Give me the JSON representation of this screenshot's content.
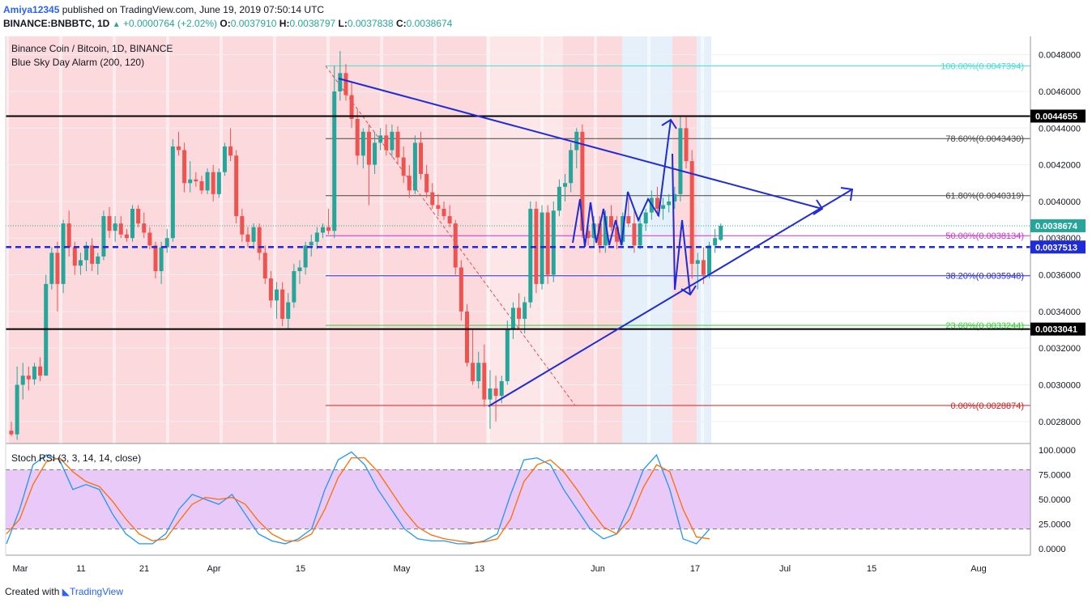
{
  "header": {
    "user": "Amiya12345",
    "published": "published on TradingView.com, June 19, 2019 07:50:14 UTC",
    "symbol": "BINANCE:BNBBTC, 1D",
    "change": "+0.0000764 (+2.02%)",
    "o_label": "O:",
    "o": "0.0037910",
    "h_label": "H:",
    "h": "0.0038797",
    "l_label": "L:",
    "l": "0.0037838",
    "c_label": "C:",
    "c": "0.0038674"
  },
  "legend": {
    "title": "Binance Coin / Bitcoin, 1D, BINANCE",
    "indicator": "Blue Sky Day Alarm (200, 120)",
    "oscillator": "Stoch RSI (3, 3, 14, 14, close)"
  },
  "footer": {
    "created": "Created with",
    "brand": "TradingView"
  },
  "colors": {
    "up": "#26a69a",
    "down": "#ef5350",
    "drawing": "#1f2bd6",
    "bg_red": "#fcd9dc",
    "bg_blue": "#e6f0fb",
    "stoch_band": "#e9c9f7"
  },
  "chart_data": {
    "type": "candlestick",
    "title": "Binance Coin / Bitcoin, 1D, BINANCE",
    "x_ticks": [
      "Mar",
      "11",
      "21",
      "Apr",
      "15",
      "May",
      "13",
      "Jun",
      "17",
      "Jul",
      "15",
      "Aug"
    ],
    "price_ticks": [
      "0.0048000",
      "0.0046000",
      "0.0044000",
      "0.0042000",
      "0.0040000",
      "0.0038000",
      "0.0036000",
      "0.0034000",
      "0.0032000",
      "0.0030000",
      "0.0028000"
    ],
    "ylim": [
      0.00268,
      0.0049
    ],
    "price_labels": [
      {
        "text": "0.0044655",
        "value": 0.0044655,
        "style": "black"
      },
      {
        "text": "0.0038674",
        "value": 0.0038674,
        "style": "teal"
      },
      {
        "text": "0.0037513",
        "value": 0.0037513,
        "style": "blue"
      },
      {
        "text": "0.0033041",
        "value": 0.0033041,
        "style": "black"
      }
    ],
    "fib_levels": [
      {
        "text": "100.00%(0.0047394)",
        "value": 0.0047394,
        "color": "#40e0d0"
      },
      {
        "text": "78.60%(0.0043430)",
        "value": 0.004343,
        "color": "#444444"
      },
      {
        "text": "61.80%(0.0040319)",
        "value": 0.0040319,
        "color": "#444444"
      },
      {
        "text": "50.00%(0.0038134)",
        "value": 0.0038134,
        "color": "#cc33cc"
      },
      {
        "text": "38.20%(0.0035948)",
        "value": 0.0035948,
        "color": "#2a2ad6"
      },
      {
        "text": "23.60%(0.0033244)",
        "value": 0.0033244,
        "color": "#33cc33"
      },
      {
        "text": "0.00%(0.0028874)",
        "value": 0.0028874,
        "color": "#cc2222"
      }
    ],
    "candles": [
      [
        0.00275,
        0.0028,
        0.00272,
        0.00273
      ],
      [
        0.00273,
        0.0031,
        0.0027,
        0.003
      ],
      [
        0.003,
        0.00312,
        0.00292,
        0.00305
      ],
      [
        0.00305,
        0.0031,
        0.00297,
        0.00303
      ],
      [
        0.00303,
        0.00312,
        0.003,
        0.0031
      ],
      [
        0.0031,
        0.00315,
        0.00302,
        0.00305
      ],
      [
        0.00305,
        0.0036,
        0.00305,
        0.00355
      ],
      [
        0.00355,
        0.00375,
        0.00352,
        0.00372
      ],
      [
        0.00372,
        0.00378,
        0.0034,
        0.00355
      ],
      [
        0.00355,
        0.0039,
        0.0035,
        0.00388
      ],
      [
        0.00388,
        0.00395,
        0.0037,
        0.00375
      ],
      [
        0.00375,
        0.00378,
        0.0036,
        0.00365
      ],
      [
        0.00365,
        0.00372,
        0.0036,
        0.00368
      ],
      [
        0.00368,
        0.00378,
        0.00362,
        0.00376
      ],
      [
        0.00376,
        0.0038,
        0.00362,
        0.00366
      ],
      [
        0.00366,
        0.00372,
        0.0036,
        0.0037
      ],
      [
        0.0037,
        0.00395,
        0.00368,
        0.00392
      ],
      [
        0.00392,
        0.00397,
        0.0038,
        0.00384
      ],
      [
        0.00384,
        0.00392,
        0.00378,
        0.00388
      ],
      [
        0.00388,
        0.00392,
        0.0038,
        0.00382
      ],
      [
        0.00382,
        0.00385,
        0.00378,
        0.0038
      ],
      [
        0.0038,
        0.00398,
        0.00378,
        0.00396
      ],
      [
        0.00396,
        0.00398,
        0.00386,
        0.00388
      ],
      [
        0.00388,
        0.00394,
        0.0038,
        0.00383
      ],
      [
        0.00383,
        0.00386,
        0.00374,
        0.00376
      ],
      [
        0.00376,
        0.00378,
        0.00358,
        0.00362
      ],
      [
        0.00362,
        0.00378,
        0.00355,
        0.00375
      ],
      [
        0.00375,
        0.00385,
        0.00372,
        0.0038
      ],
      [
        0.0038,
        0.00434,
        0.00378,
        0.0043
      ],
      [
        0.0043,
        0.00438,
        0.00425,
        0.00428
      ],
      [
        0.00428,
        0.00432,
        0.00405,
        0.0041
      ],
      [
        0.0041,
        0.00422,
        0.00405,
        0.00412
      ],
      [
        0.00412,
        0.00416,
        0.00408,
        0.00411
      ],
      [
        0.00411,
        0.00414,
        0.00404,
        0.00406
      ],
      [
        0.00406,
        0.00418,
        0.00404,
        0.00416
      ],
      [
        0.00416,
        0.0042,
        0.004,
        0.00404
      ],
      [
        0.00404,
        0.00418,
        0.00402,
        0.00416
      ],
      [
        0.00416,
        0.00432,
        0.00414,
        0.0043
      ],
      [
        0.0043,
        0.0044,
        0.00422,
        0.00425
      ],
      [
        0.00425,
        0.00428,
        0.00388,
        0.00392
      ],
      [
        0.00392,
        0.00396,
        0.00378,
        0.00382
      ],
      [
        0.00382,
        0.00386,
        0.00375,
        0.00378
      ],
      [
        0.00378,
        0.00388,
        0.00374,
        0.00386
      ],
      [
        0.00386,
        0.00388,
        0.00368,
        0.00372
      ],
      [
        0.00372,
        0.00376,
        0.00355,
        0.00358
      ],
      [
        0.00358,
        0.00362,
        0.00342,
        0.00346
      ],
      [
        0.00346,
        0.00356,
        0.00336,
        0.00352
      ],
      [
        0.00352,
        0.00356,
        0.00332,
        0.00336
      ],
      [
        0.00336,
        0.0035,
        0.0033,
        0.00345
      ],
      [
        0.00345,
        0.00366,
        0.00342,
        0.00362
      ],
      [
        0.00362,
        0.00368,
        0.00355,
        0.00364
      ],
      [
        0.00364,
        0.00378,
        0.0036,
        0.00376
      ],
      [
        0.00376,
        0.00382,
        0.0037,
        0.00378
      ],
      [
        0.00378,
        0.00386,
        0.00374,
        0.00383
      ],
      [
        0.00383,
        0.00388,
        0.0038,
        0.00386
      ],
      [
        0.00386,
        0.00396,
        0.00382,
        0.00384
      ],
      [
        0.00384,
        0.00474,
        0.0038,
        0.0046
      ],
      [
        0.0046,
        0.00482,
        0.00455,
        0.0047
      ],
      [
        0.0047,
        0.00475,
        0.00455,
        0.00458
      ],
      [
        0.00458,
        0.00465,
        0.0044,
        0.00445
      ],
      [
        0.00445,
        0.0045,
        0.0042,
        0.00425
      ],
      [
        0.00425,
        0.0044,
        0.00418,
        0.00438
      ],
      [
        0.00438,
        0.00442,
        0.00398,
        0.0042
      ],
      [
        0.0042,
        0.00438,
        0.00415,
        0.00432
      ],
      [
        0.00432,
        0.0044,
        0.00428,
        0.00436
      ],
      [
        0.00436,
        0.00442,
        0.00425,
        0.00428
      ],
      [
        0.00428,
        0.00442,
        0.00424,
        0.00438
      ],
      [
        0.00438,
        0.00441,
        0.0042,
        0.00424
      ],
      [
        0.00424,
        0.0043,
        0.0041,
        0.00414
      ],
      [
        0.00414,
        0.0042,
        0.00402,
        0.00406
      ],
      [
        0.00406,
        0.00436,
        0.00404,
        0.00432
      ],
      [
        0.00432,
        0.00438,
        0.00412,
        0.00415
      ],
      [
        0.00415,
        0.0042,
        0.00402,
        0.00405
      ],
      [
        0.00405,
        0.0041,
        0.00396,
        0.00398
      ],
      [
        0.00398,
        0.00404,
        0.00392,
        0.00396
      ],
      [
        0.00396,
        0.004,
        0.0039,
        0.00392
      ],
      [
        0.00392,
        0.00398,
        0.00386,
        0.00388
      ],
      [
        0.00388,
        0.0039,
        0.0036,
        0.00364
      ],
      [
        0.00364,
        0.00368,
        0.00335,
        0.0034
      ],
      [
        0.0034,
        0.00344,
        0.0031,
        0.00312
      ],
      [
        0.00312,
        0.0033,
        0.003,
        0.00302
      ],
      [
        0.00302,
        0.00318,
        0.00298,
        0.00312
      ],
      [
        0.00312,
        0.00322,
        0.00288,
        0.00292
      ],
      [
        0.00292,
        0.00308,
        0.00276,
        0.00298
      ],
      [
        0.00298,
        0.00305,
        0.0028,
        0.00294
      ],
      [
        0.00294,
        0.00305,
        0.0029,
        0.00302
      ],
      [
        0.00302,
        0.00335,
        0.003,
        0.0033
      ],
      [
        0.0033,
        0.00345,
        0.00325,
        0.00342
      ],
      [
        0.00342,
        0.0035,
        0.0033,
        0.00336
      ],
      [
        0.00336,
        0.00348,
        0.00328,
        0.00345
      ],
      [
        0.00345,
        0.004,
        0.00342,
        0.00396
      ],
      [
        0.00396,
        0.004,
        0.0035,
        0.00355
      ],
      [
        0.00355,
        0.00398,
        0.00352,
        0.00394
      ],
      [
        0.00394,
        0.00398,
        0.00355,
        0.0036
      ],
      [
        0.0036,
        0.004,
        0.00356,
        0.00395
      ],
      [
        0.00395,
        0.00412,
        0.00392,
        0.00408
      ],
      [
        0.00408,
        0.00415,
        0.004,
        0.0041
      ],
      [
        0.0041,
        0.00432,
        0.00405,
        0.00428
      ],
      [
        0.00428,
        0.0044,
        0.00418,
        0.00438
      ],
      [
        0.00438,
        0.00442,
        0.0038,
        0.00384
      ],
      [
        0.00384,
        0.0039,
        0.00376,
        0.0038
      ],
      [
        0.0038,
        0.00392,
        0.00375,
        0.00388
      ],
      [
        0.00388,
        0.00392,
        0.00372,
        0.00376
      ],
      [
        0.00376,
        0.00395,
        0.00372,
        0.00392
      ],
      [
        0.00392,
        0.00398,
        0.00384,
        0.00386
      ],
      [
        0.00386,
        0.00392,
        0.00374,
        0.00378
      ],
      [
        0.00378,
        0.00394,
        0.00376,
        0.00392
      ],
      [
        0.00392,
        0.00402,
        0.00386,
        0.00388
      ],
      [
        0.00388,
        0.00396,
        0.00372,
        0.00376
      ],
      [
        0.00376,
        0.00392,
        0.00374,
        0.00388
      ],
      [
        0.00388,
        0.00396,
        0.00384,
        0.00394
      ],
      [
        0.00394,
        0.00406,
        0.0039,
        0.00402
      ],
      [
        0.00402,
        0.00408,
        0.00392,
        0.00396
      ],
      [
        0.00396,
        0.00402,
        0.0039,
        0.00398
      ],
      [
        0.00398,
        0.00404,
        0.00394,
        0.004
      ],
      [
        0.004,
        0.00408,
        0.00396,
        0.00404
      ],
      [
        0.00404,
        0.00446,
        0.004,
        0.0044
      ],
      [
        0.0044,
        0.00446,
        0.00418,
        0.00422
      ],
      [
        0.00422,
        0.00428,
        0.00358,
        0.00366
      ],
      [
        0.00366,
        0.00372,
        0.00352,
        0.00368
      ],
      [
        0.00368,
        0.00375,
        0.00355,
        0.0036
      ],
      [
        0.0036,
        0.00378,
        0.00358,
        0.00376
      ],
      [
        0.00376,
        0.00385,
        0.00372,
        0.0038
      ],
      [
        0.003791,
        0.0038797,
        0.0037838,
        0.0038674
      ]
    ],
    "stoch": {
      "ticks": [
        "100.0000",
        "75.0000",
        "50.0000",
        "25.0000",
        "0.0000"
      ],
      "band": [
        20,
        80
      ],
      "k": [
        5,
        40,
        85,
        95,
        90,
        60,
        65,
        60,
        35,
        15,
        5,
        5,
        15,
        40,
        55,
        50,
        45,
        55,
        35,
        15,
        8,
        5,
        10,
        20,
        60,
        90,
        98,
        85,
        60,
        40,
        20,
        10,
        8,
        8,
        5,
        5,
        8,
        15,
        55,
        90,
        92,
        85,
        60,
        40,
        20,
        10,
        15,
        45,
        80,
        95,
        60,
        10,
        5,
        20
      ],
      "d": [
        15,
        30,
        65,
        88,
        92,
        78,
        68,
        63,
        48,
        30,
        15,
        8,
        10,
        28,
        45,
        52,
        50,
        52,
        45,
        28,
        15,
        8,
        8,
        15,
        40,
        72,
        92,
        92,
        78,
        58,
        38,
        22,
        14,
        10,
        8,
        6,
        7,
        10,
        30,
        68,
        85,
        90,
        78,
        60,
        40,
        22,
        15,
        30,
        62,
        85,
        78,
        40,
        12,
        10
      ]
    }
  }
}
